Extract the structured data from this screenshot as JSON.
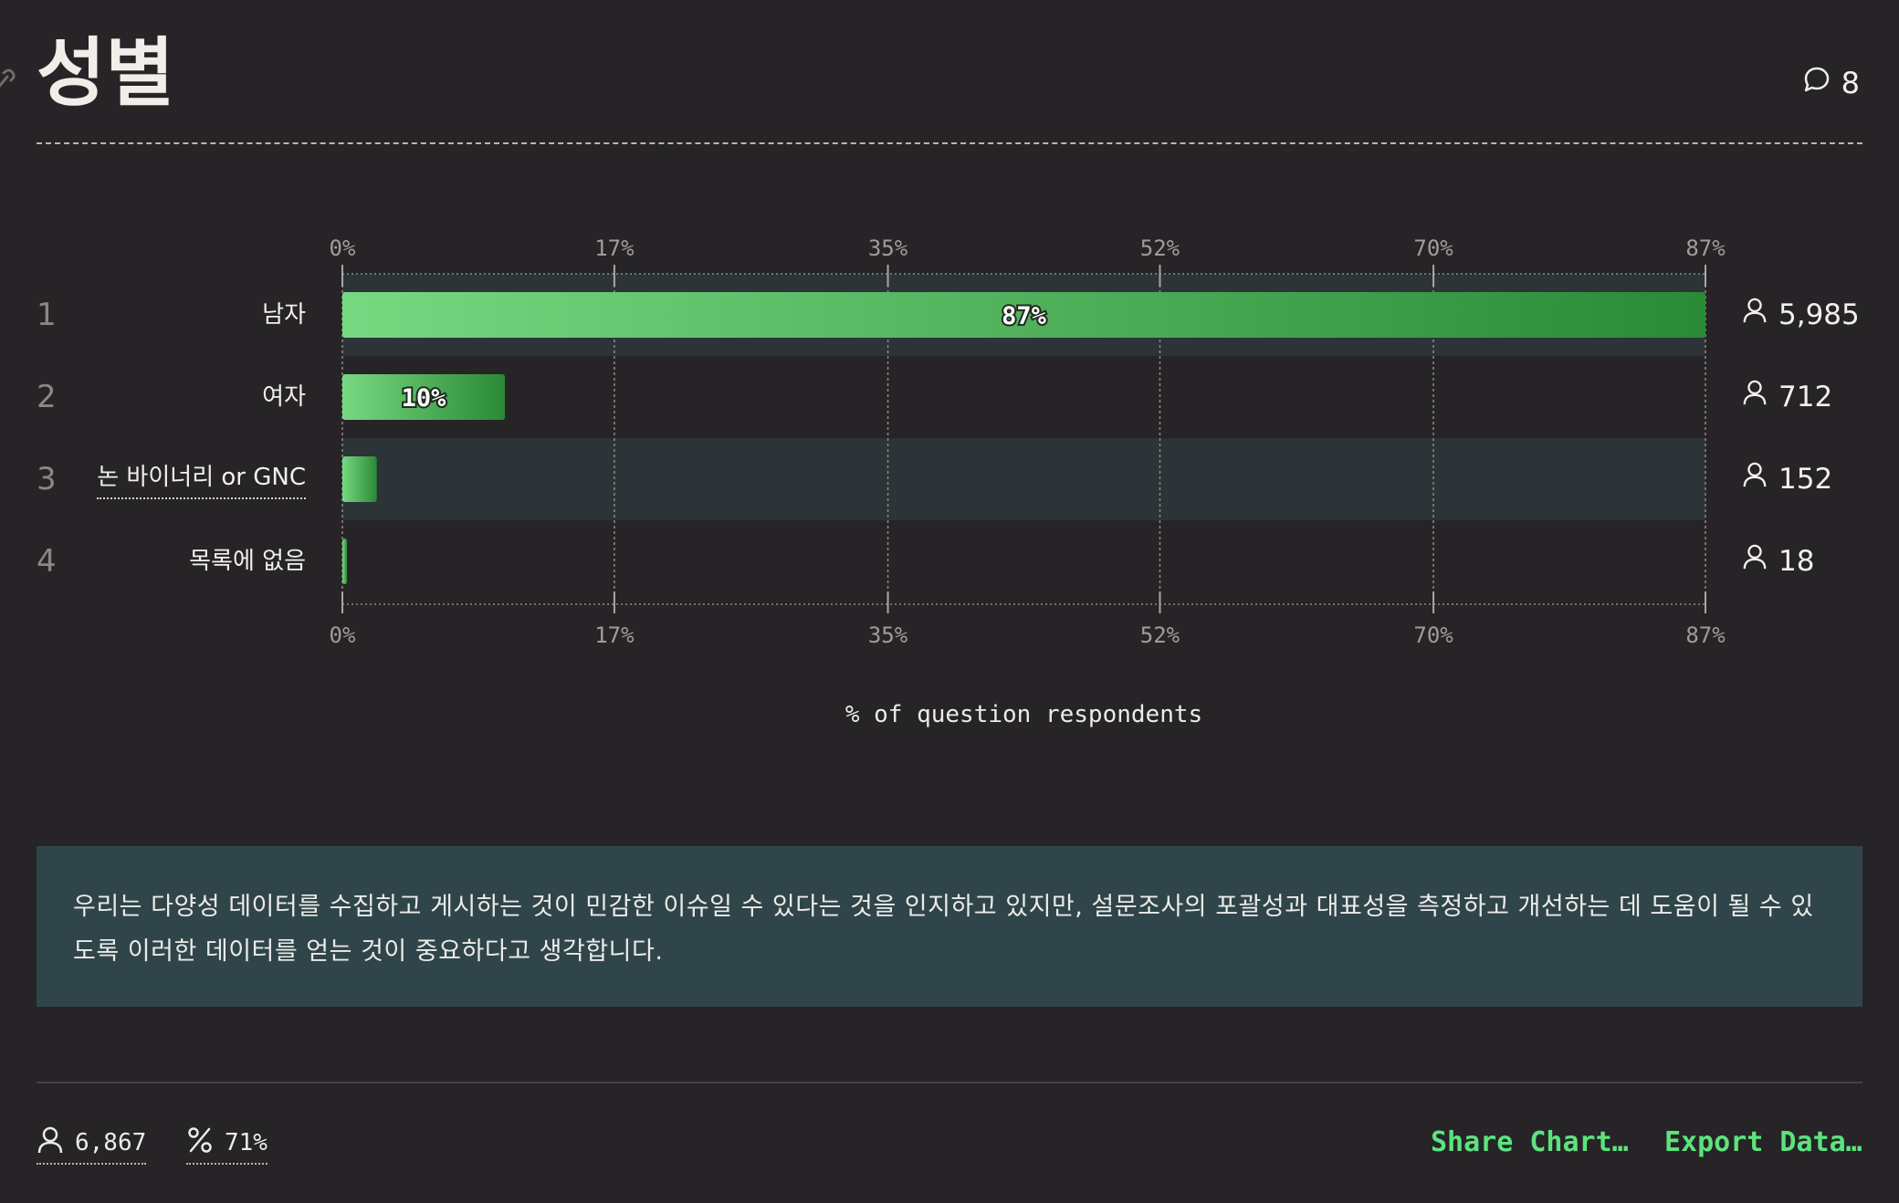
{
  "header": {
    "title": "성별",
    "comment_count": "8"
  },
  "chart_data": {
    "type": "bar",
    "orientation": "horizontal",
    "categories": [
      "남자",
      "여자",
      "논 바이너리 or GNC",
      "목록에 없음"
    ],
    "row_numbers": [
      "1",
      "2",
      "3",
      "4"
    ],
    "values": [
      87.2,
      10.4,
      2.2,
      0.3
    ],
    "data_labels": [
      "87%",
      "10%",
      "",
      ""
    ],
    "counts": [
      "5,985",
      "712",
      "152",
      "18"
    ],
    "tick_values": [
      0,
      17.4,
      34.9,
      52.3,
      69.8,
      87.2
    ],
    "tick_labels": [
      "0%",
      "17%",
      "35%",
      "52%",
      "70%",
      "87%"
    ],
    "xlim": [
      0,
      87.2
    ],
    "xlabel": "% of question respondents",
    "grid": true,
    "colors": {
      "bar_start": "#78d882",
      "bar_end": "#2a8a35",
      "row_band": "#2c3437"
    }
  },
  "note": {
    "text": "우리는 다양성 데이터를 수집하고 게시하는 것이 민감한 이슈일 수 있다는 것을 인지하고 있지만, 설문조사의 포괄성과 대표성을 측정하고 개선하는 데 도움이 될 수 있도록 이러한 데이터를 얻는 것이 중요하다고 생각합니다."
  },
  "footer": {
    "respondents": "6,867",
    "percent": "71%",
    "share_label": "Share Chart…",
    "export_label": "Export Data…"
  },
  "icons": {
    "link": "link-icon",
    "comment": "comment-bubble-icon",
    "user": "user-icon",
    "percent": "percent-icon"
  }
}
